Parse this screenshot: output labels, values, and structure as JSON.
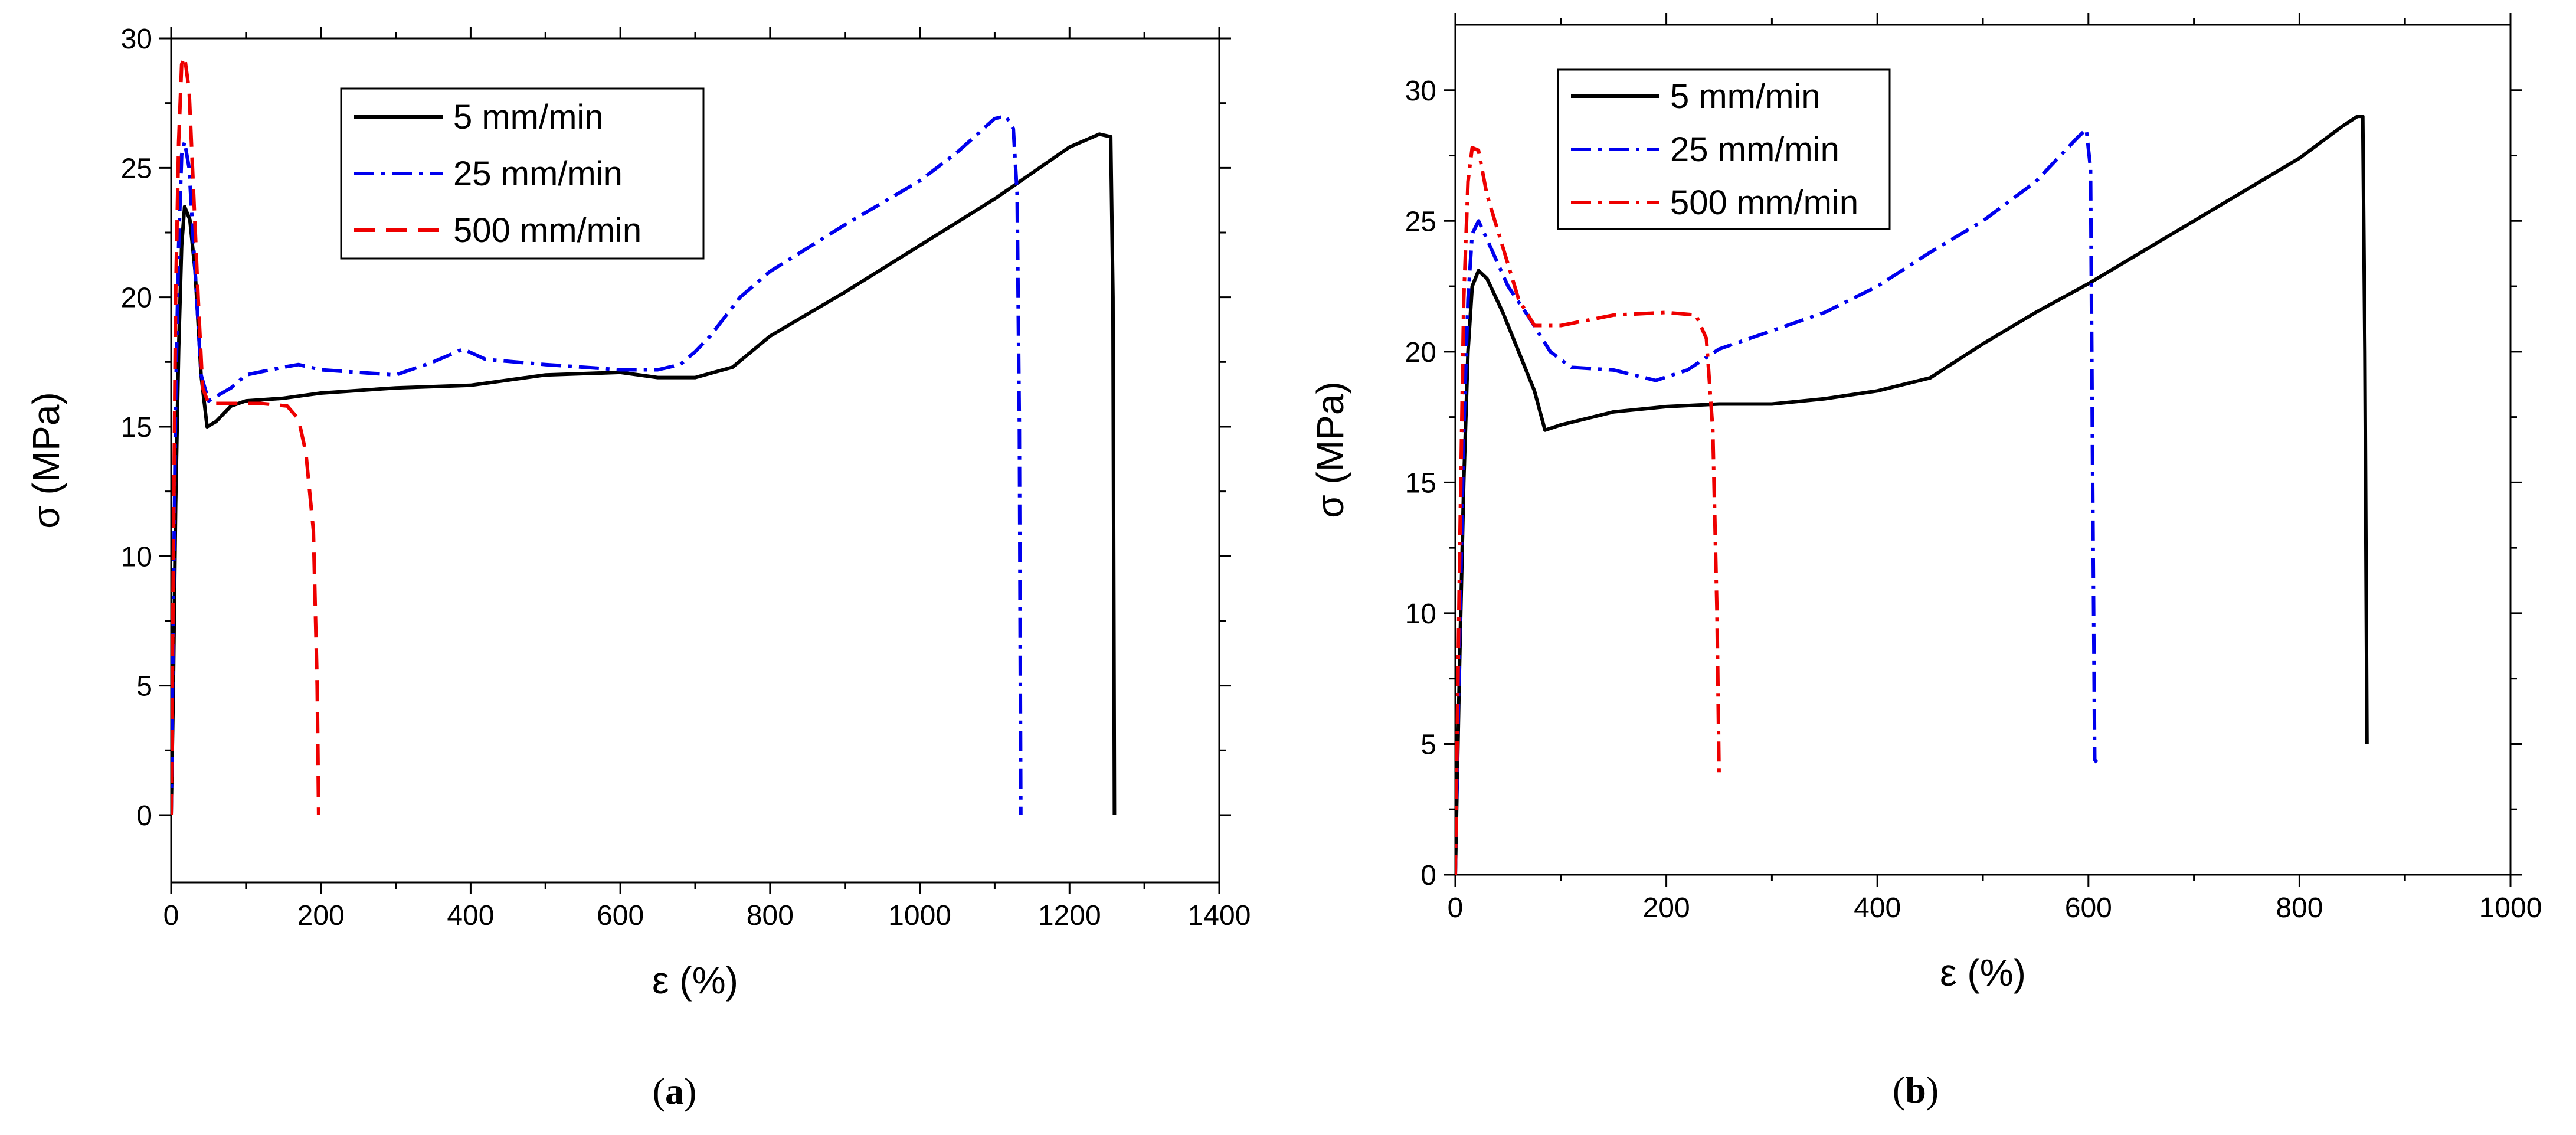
{
  "chart_data": [
    {
      "type": "line",
      "panel_label": "a",
      "title": "",
      "xlabel": "ε (%)",
      "ylabel": "σ (MPa)",
      "xlim": [
        0,
        1400
      ],
      "ylim": [
        -2.6,
        30
      ],
      "xticks": [
        0,
        200,
        400,
        600,
        800,
        1000,
        1200,
        1400
      ],
      "yticks": [
        0,
        5,
        10,
        15,
        20,
        25,
        30
      ],
      "legend_position": "top-center",
      "series": [
        {
          "name": "5 mm/min",
          "color": "#000000",
          "dash": "solid",
          "points": [
            [
              0,
              0
            ],
            [
              3,
              5
            ],
            [
              6,
              12
            ],
            [
              10,
              18
            ],
            [
              14,
              22
            ],
            [
              18,
              23.5
            ],
            [
              25,
              23
            ],
            [
              32,
              21
            ],
            [
              40,
              17
            ],
            [
              48,
              15
            ],
            [
              60,
              15.2
            ],
            [
              80,
              15.8
            ],
            [
              100,
              16
            ],
            [
              150,
              16.1
            ],
            [
              200,
              16.3
            ],
            [
              300,
              16.5
            ],
            [
              400,
              16.6
            ],
            [
              500,
              17
            ],
            [
              600,
              17.1
            ],
            [
              650,
              16.9
            ],
            [
              700,
              16.9
            ],
            [
              750,
              17.3
            ],
            [
              800,
              18.5
            ],
            [
              900,
              20.2
            ],
            [
              1000,
              22
            ],
            [
              1100,
              23.8
            ],
            [
              1200,
              25.8
            ],
            [
              1240,
              26.3
            ],
            [
              1255,
              26.2
            ],
            [
              1258,
              20
            ],
            [
              1260,
              0
            ]
          ]
        },
        {
          "name": "25 mm/min",
          "color": "#0000ee",
          "dash": "dashdot",
          "points": [
            [
              0,
              0
            ],
            [
              3,
              8
            ],
            [
              6,
              16
            ],
            [
              10,
              22
            ],
            [
              14,
              25.5
            ],
            [
              18,
              26
            ],
            [
              24,
              25
            ],
            [
              32,
              21
            ],
            [
              40,
              17
            ],
            [
              50,
              16
            ],
            [
              80,
              16.5
            ],
            [
              100,
              17
            ],
            [
              150,
              17.3
            ],
            [
              170,
              17.4
            ],
            [
              200,
              17.2
            ],
            [
              250,
              17.1
            ],
            [
              300,
              17
            ],
            [
              350,
              17.5
            ],
            [
              390,
              18
            ],
            [
              420,
              17.6
            ],
            [
              500,
              17.4
            ],
            [
              550,
              17.3
            ],
            [
              600,
              17.2
            ],
            [
              650,
              17.2
            ],
            [
              680,
              17.4
            ],
            [
              700,
              17.9
            ],
            [
              720,
              18.5
            ],
            [
              760,
              20
            ],
            [
              800,
              21
            ],
            [
              900,
              22.8
            ],
            [
              1000,
              24.5
            ],
            [
              1050,
              25.6
            ],
            [
              1100,
              26.9
            ],
            [
              1115,
              27
            ],
            [
              1125,
              26.5
            ],
            [
              1130,
              24
            ],
            [
              1133,
              15
            ],
            [
              1135,
              0
            ]
          ]
        },
        {
          "name": "500 mm/min",
          "color": "#ee0000",
          "dash": "dashed",
          "points": [
            [
              0,
              0
            ],
            [
              3,
              10
            ],
            [
              6,
              20
            ],
            [
              10,
              26
            ],
            [
              14,
              29
            ],
            [
              18,
              29.3
            ],
            [
              24,
              28
            ],
            [
              30,
              24
            ],
            [
              36,
              20
            ],
            [
              42,
              16.5
            ],
            [
              50,
              15.9
            ],
            [
              80,
              15.9
            ],
            [
              120,
              15.9
            ],
            [
              155,
              15.8
            ],
            [
              170,
              15.3
            ],
            [
              180,
              14
            ],
            [
              190,
              11
            ],
            [
              195,
              5
            ],
            [
              197,
              0
            ]
          ]
        }
      ]
    },
    {
      "type": "line",
      "panel_label": "b",
      "title": "",
      "xlabel": "ε (%)",
      "ylabel": "σ (MPa)",
      "xlim": [
        0,
        1000
      ],
      "ylim": [
        0,
        32.5
      ],
      "xticks": [
        0,
        200,
        400,
        600,
        800,
        1000
      ],
      "yticks": [
        0,
        5,
        10,
        15,
        20,
        25,
        30
      ],
      "legend_position": "top-left",
      "series": [
        {
          "name": "5 mm/min",
          "color": "#000000",
          "dash": "solid",
          "points": [
            [
              0,
              0
            ],
            [
              4,
              8
            ],
            [
              8,
              15
            ],
            [
              12,
              20
            ],
            [
              16,
              22.5
            ],
            [
              22,
              23.1
            ],
            [
              30,
              22.8
            ],
            [
              45,
              21.5
            ],
            [
              60,
              20
            ],
            [
              75,
              18.5
            ],
            [
              85,
              17
            ],
            [
              100,
              17.2
            ],
            [
              150,
              17.7
            ],
            [
              200,
              17.9
            ],
            [
              250,
              18
            ],
            [
              300,
              18
            ],
            [
              350,
              18.2
            ],
            [
              400,
              18.5
            ],
            [
              450,
              19
            ],
            [
              500,
              20.3
            ],
            [
              550,
              21.5
            ],
            [
              600,
              22.6
            ],
            [
              700,
              25
            ],
            [
              800,
              27.4
            ],
            [
              840,
              28.6
            ],
            [
              855,
              29
            ],
            [
              860,
              29
            ],
            [
              862,
              20
            ],
            [
              864,
              5
            ]
          ]
        },
        {
          "name": "25 mm/min",
          "color": "#0000ee",
          "dash": "dashdot",
          "points": [
            [
              0,
              0
            ],
            [
              4,
              9
            ],
            [
              8,
              17
            ],
            [
              12,
              22
            ],
            [
              16,
              24.5
            ],
            [
              22,
              25
            ],
            [
              30,
              24.3
            ],
            [
              50,
              22.5
            ],
            [
              70,
              21.3
            ],
            [
              90,
              20
            ],
            [
              110,
              19.4
            ],
            [
              150,
              19.3
            ],
            [
              190,
              18.9
            ],
            [
              220,
              19.3
            ],
            [
              250,
              20.1
            ],
            [
              300,
              20.8
            ],
            [
              350,
              21.5
            ],
            [
              400,
              22.5
            ],
            [
              450,
              23.8
            ],
            [
              500,
              25
            ],
            [
              550,
              26.5
            ],
            [
              590,
              28.2
            ],
            [
              598,
              28.5
            ],
            [
              602,
              27
            ],
            [
              604,
              15
            ],
            [
              606,
              4.4
            ],
            [
              608,
              4.3
            ]
          ]
        },
        {
          "name": "500 mm/min",
          "color": "#ee0000",
          "dash": "dashdot",
          "points": [
            [
              0,
              0
            ],
            [
              4,
              12
            ],
            [
              8,
              22
            ],
            [
              12,
              26.5
            ],
            [
              16,
              27.8
            ],
            [
              22,
              27.7
            ],
            [
              30,
              26
            ],
            [
              45,
              24
            ],
            [
              60,
              22
            ],
            [
              75,
              21
            ],
            [
              100,
              21
            ],
            [
              150,
              21.4
            ],
            [
              200,
              21.5
            ],
            [
              228,
              21.4
            ],
            [
              238,
              20.5
            ],
            [
              244,
              17
            ],
            [
              248,
              10
            ],
            [
              250,
              3.8
            ]
          ]
        }
      ]
    }
  ]
}
